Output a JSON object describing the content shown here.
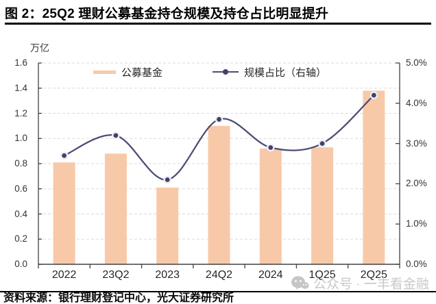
{
  "title": "图 2：25Q2 理财公募基金持仓规模及持仓占比明显提升",
  "watermark": {
    "icon": "wechat-logo",
    "text": "公众号 · 一丰看金融"
  },
  "footer": {
    "source": "资料来源：银行理财登记中心，光大证券研究所"
  },
  "chart_data": {
    "type": "bar",
    "subtype": "combo bar + line (dual axis)",
    "categories": [
      "2022",
      "23Q2",
      "2023",
      "24Q2",
      "2024",
      "1Q25",
      "2Q25"
    ],
    "series": [
      {
        "name": "公募基金",
        "type": "bar",
        "axis": "left",
        "values": [
          0.81,
          0.88,
          0.61,
          1.1,
          0.92,
          0.93,
          1.38
        ],
        "color": "#F8C9A8"
      },
      {
        "name": "规模占比（右轴）",
        "type": "line",
        "axis": "right",
        "values": [
          2.7,
          3.2,
          2.1,
          3.6,
          2.9,
          3.0,
          4.2
        ],
        "color": "#4C4C74"
      }
    ],
    "left_axis": {
      "unit": "万亿",
      "min": 0,
      "max": 1.6,
      "step": 0.2,
      "tick_labels": [
        "0.0",
        "0.2",
        "0.4",
        "0.6",
        "0.8",
        "1.0",
        "1.2",
        "1.4",
        "1.6"
      ]
    },
    "right_axis": {
      "min": 0,
      "max": 5,
      "step": 1,
      "tick_labels": [
        "0.0%",
        "1.0%",
        "2.0%",
        "3.0%",
        "4.0%",
        "5.0%"
      ]
    },
    "legend": {
      "position": "top-inside",
      "items": [
        "公募基金",
        "规模占比（右轴）"
      ]
    },
    "grid": "horizontal dashed",
    "colors": {
      "bar": "#F8C9A8",
      "line": "#4C4C74",
      "marker": "#41416B",
      "marker_halo": "#EFEFF4",
      "gridline": "#DADADA",
      "axis": "#404040",
      "watermark": "#C8C8C8"
    }
  }
}
